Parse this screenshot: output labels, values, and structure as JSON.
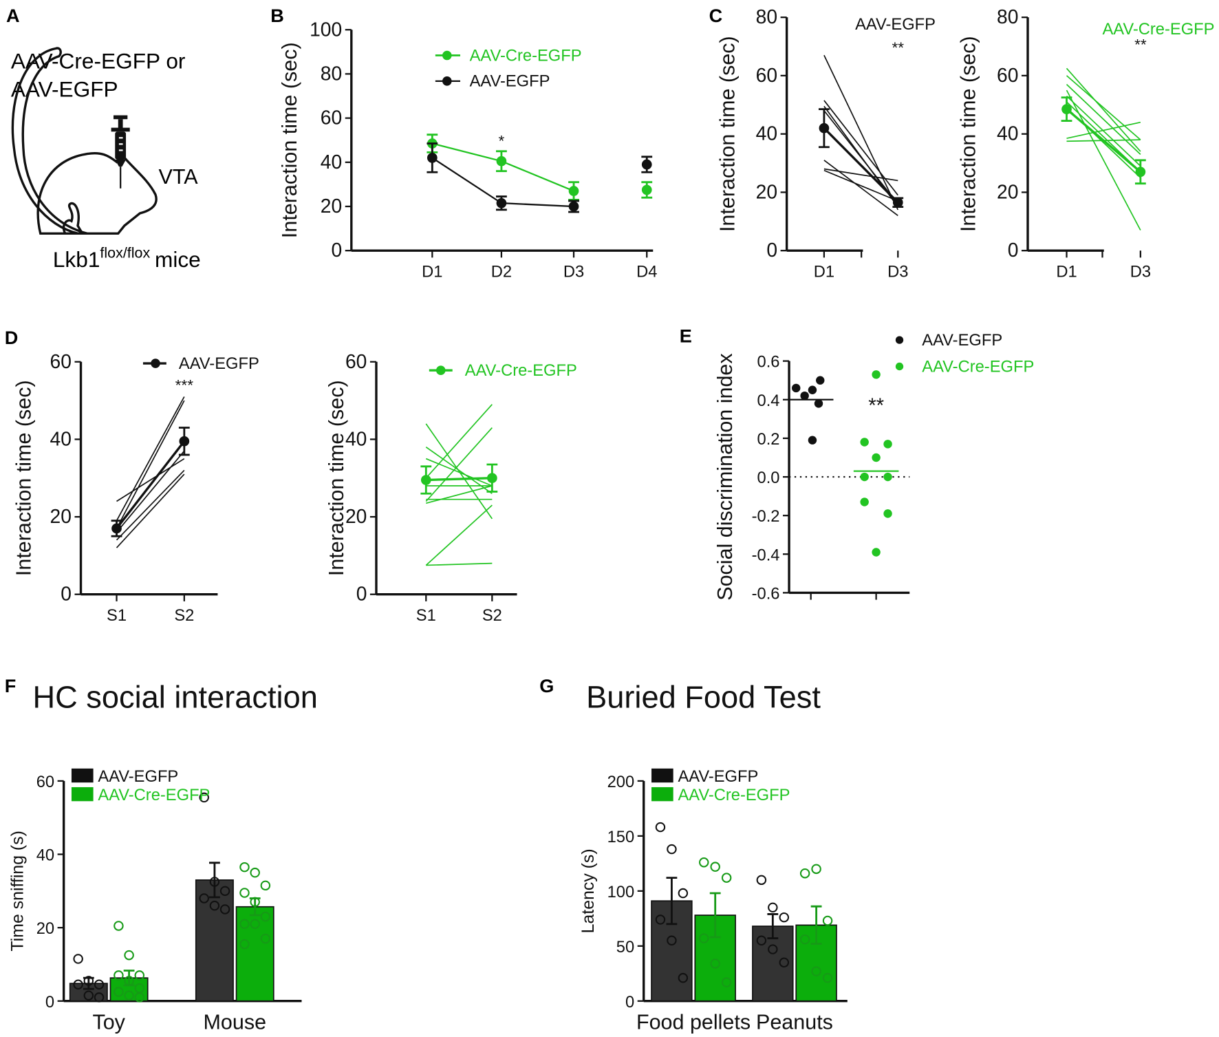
{
  "panels": {
    "A": "A",
    "B": "B",
    "C": "C",
    "D": "D",
    "E": "E",
    "F": "F",
    "G": "G"
  },
  "illustration": {
    "virus_line1": "AAV-Cre-EGFP or",
    "virus_line2": "AAV-EGFP",
    "region": "VTA",
    "strain_base": "Lkb1",
    "strain_sup": "flox/flox",
    "strain_suffix": "mice"
  },
  "colors": {
    "black": "#111111",
    "green": "#22c422",
    "bar_black": "#333333",
    "bar_green": "#0cae0c",
    "open_green": "#169a16"
  },
  "chart_data": [
    {
      "id": "B",
      "type": "line",
      "title": "",
      "xlabel": "",
      "ylabel": "Interaction time (sec)",
      "ylim": [
        0,
        100
      ],
      "yticks": [
        0,
        20,
        40,
        60,
        80,
        100
      ],
      "categories": [
        "D1",
        "D2",
        "D3",
        "D4"
      ],
      "legend": [
        "AAV-Cre-EGFP",
        "AAV-EGFP"
      ],
      "legend_position": "top-right",
      "series": [
        {
          "name": "AAV-Cre-EGFP",
          "color": "green",
          "mean": [
            48.5,
            40.5,
            27,
            27.5
          ],
          "sem": [
            4,
            4.5,
            4,
            3.5
          ]
        },
        {
          "name": "AAV-EGFP",
          "color": "black",
          "mean": [
            42,
            21.5,
            20,
            39
          ],
          "sem": [
            6.5,
            3,
            2.5,
            3.5
          ]
        }
      ],
      "annotations": [
        {
          "text": "*",
          "category": "D2"
        }
      ]
    },
    {
      "id": "C-left",
      "type": "line",
      "title": "AAV-EGFP",
      "ylabel": "Interaction time (sec)",
      "ylim": [
        0,
        80
      ],
      "yticks": [
        0,
        20,
        40,
        60,
        80
      ],
      "categories": [
        "D1",
        "D3"
      ],
      "series": [
        {
          "name": "AAV-EGFP",
          "color": "black",
          "mean": [
            42,
            16.5
          ],
          "sem": [
            6.5,
            1.5
          ],
          "individuals": [
            [
              67,
              14
            ],
            [
              51.5,
              19
            ],
            [
              49.5,
              15
            ],
            [
              48,
              16
            ],
            [
              31,
              12
            ],
            [
              28,
              24
            ],
            [
              27.5,
              17
            ]
          ]
        }
      ],
      "annotations": [
        {
          "text": "**",
          "category": "D3"
        }
      ]
    },
    {
      "id": "C-right",
      "type": "line",
      "title": "AAV-Cre-EGFP",
      "ylabel": "Interaction time (sec)",
      "ylim": [
        0,
        80
      ],
      "yticks": [
        0,
        20,
        40,
        60,
        80
      ],
      "categories": [
        "D1",
        "D3"
      ],
      "series": [
        {
          "name": "AAV-Cre-EGFP",
          "color": "green",
          "mean": [
            48.5,
            27
          ],
          "sem": [
            4,
            4
          ],
          "individuals": [
            [
              62.5,
              34
            ],
            [
              60,
              38
            ],
            [
              57,
              33
            ],
            [
              55,
              7
            ],
            [
              53,
              29
            ],
            [
              51,
              27
            ],
            [
              49,
              25
            ],
            [
              38.5,
              44
            ],
            [
              37.5,
              38
            ]
          ]
        }
      ],
      "annotations": [
        {
          "text": "**",
          "category": "D3"
        }
      ]
    },
    {
      "id": "D-left",
      "type": "line",
      "ylabel": "Interaction time (sec)",
      "ylim": [
        0,
        60
      ],
      "yticks": [
        0,
        20,
        40,
        60
      ],
      "categories": [
        "S1",
        "S2"
      ],
      "legend": [
        "AAV-EGFP"
      ],
      "series": [
        {
          "name": "AAV-EGFP",
          "color": "black",
          "mean": [
            17,
            39.5
          ],
          "sem": [
            2,
            3.5
          ],
          "individuals": [
            [
              24,
              35
            ],
            [
              19,
              51
            ],
            [
              17,
              50
            ],
            [
              16,
              37
            ],
            [
              14,
              32
            ],
            [
              12,
              31
            ]
          ]
        }
      ],
      "annotations": [
        {
          "text": "***",
          "category": "S2"
        }
      ]
    },
    {
      "id": "D-right",
      "type": "line",
      "ylabel": "Interaction time (sec)",
      "ylim": [
        0,
        60
      ],
      "yticks": [
        0,
        20,
        40,
        60
      ],
      "categories": [
        "S1",
        "S2"
      ],
      "legend": [
        "AAV-Cre-EGFP"
      ],
      "series": [
        {
          "name": "AAV-Cre-EGFP",
          "color": "green",
          "mean": [
            29.5,
            30
          ],
          "sem": [
            3.5,
            3.5
          ],
          "individuals": [
            [
              44,
              19.5
            ],
            [
              38,
              26
            ],
            [
              35,
              28
            ],
            [
              30,
              49
            ],
            [
              28,
              28
            ],
            [
              24.5,
              24.5
            ],
            [
              24,
              43
            ],
            [
              23.5,
              28
            ],
            [
              7.5,
              23
            ],
            [
              7.5,
              8
            ]
          ]
        }
      ],
      "annotations": []
    },
    {
      "id": "E",
      "type": "scatter",
      "ylabel": "Social discrimination index",
      "ylim": [
        -0.6,
        0.6
      ],
      "yticks": [
        -0.6,
        -0.4,
        -0.2,
        0.0,
        0.2,
        0.4,
        0.6
      ],
      "legend": [
        "AAV-EGFP",
        "AAV-Cre-EGFP"
      ],
      "reference_line": 0,
      "groups": [
        {
          "name": "AAV-EGFP",
          "color": "black",
          "values": [
            0.46,
            0.42,
            0.45,
            0.5,
            0.38,
            0.19
          ],
          "mean": 0.4
        },
        {
          "name": "AAV-Cre-EGFP",
          "color": "green",
          "values": [
            0.53,
            0.18,
            0.17,
            0.1,
            0.0,
            0.0,
            -0.13,
            -0.19,
            -0.39
          ],
          "mean": 0.03
        }
      ],
      "annotations": [
        {
          "text": "**",
          "group": "AAV-Cre-EGFP"
        }
      ]
    },
    {
      "id": "F",
      "type": "bar",
      "title": "HC social interaction",
      "ylabel": "Time sniffing (s)",
      "ylim": [
        0,
        60
      ],
      "yticks": [
        0,
        20,
        40,
        60
      ],
      "categories": [
        "Toy",
        "Mouse"
      ],
      "legend": [
        "AAV-EGFP",
        "AAV-Cre-EGFP"
      ],
      "series": [
        {
          "name": "AAV-EGFP",
          "color": "bar_black",
          "values": [
            4.8,
            33
          ],
          "sem": [
            1.5,
            4.7
          ],
          "points": [
            [
              11.5,
              5.5,
              4.5,
              4.5,
              1.5,
              1
            ],
            [
              55.5,
              32.5,
              30,
              28,
              26,
              25
            ]
          ]
        },
        {
          "name": "AAV-Cre-EGFP",
          "color": "bar_green",
          "values": [
            6.3,
            25.7
          ],
          "sem": [
            2,
            2.3
          ],
          "points": [
            [
              20.5,
              12.5,
              7,
              7,
              5.5,
              3.5,
              2.5,
              1.5,
              1
            ],
            [
              36.5,
              35,
              31.5,
              29.5,
              27,
              23,
              21,
              21,
              17,
              15.5
            ]
          ]
        }
      ]
    },
    {
      "id": "G",
      "type": "bar",
      "title": "Buried Food Test",
      "ylabel": "Latency (s)",
      "ylim": [
        0,
        200
      ],
      "yticks": [
        0,
        50,
        100,
        150,
        200
      ],
      "categories": [
        "Food pellets",
        "Peanuts"
      ],
      "legend": [
        "AAV-EGFP",
        "AAV-Cre-EGFP"
      ],
      "series": [
        {
          "name": "AAV-EGFP",
          "color": "bar_black",
          "values": [
            91,
            68
          ],
          "sem": [
            21,
            11
          ],
          "points": [
            [
              158,
              138,
              98,
              74,
              55,
              21
            ],
            [
              110,
              85,
              76,
              55,
              47,
              35
            ]
          ]
        },
        {
          "name": "AAV-Cre-EGFP",
          "color": "bar_green",
          "values": [
            78,
            69
          ],
          "sem": [
            20,
            17
          ],
          "points": [
            [
              126,
              122,
              112,
              57,
              34,
              17
            ],
            [
              116,
              120,
              73,
              56,
              27,
              21
            ]
          ]
        }
      ]
    }
  ]
}
